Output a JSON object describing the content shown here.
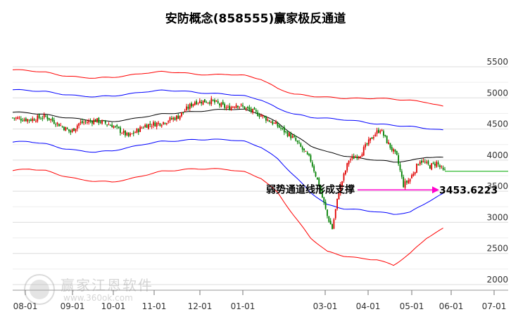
{
  "watermark": {
    "name": "赢家江恩软件",
    "url": "www.360ok.com"
  },
  "chart_data": {
    "type": "candlestick",
    "title": "安防概念(858555)赢家极反通道",
    "x_tick_labels": [
      "08-01",
      "09-01",
      "10-01",
      "11-01",
      "12-01",
      "01-01",
      "03-01",
      "04-01",
      "05-01",
      "06-01",
      "07-01"
    ],
    "y_tick_labels": [
      "5500",
      "5000",
      "4500",
      "4000",
      "3500",
      "3000",
      "2500",
      "2000"
    ],
    "ylim": [
      2000,
      5750
    ],
    "grid": true,
    "annotation": {
      "text": "弱势通道线形成支撑",
      "value_label": "3453.6223",
      "value": 3453.6223
    },
    "last_close": 3820,
    "colors": {
      "up": "#e00000",
      "down": "#008000",
      "outer_band": "#ff0000",
      "inner_band": "#0000ff",
      "mid_line": "#000000",
      "support_arrow": "#ff00cc",
      "annotation_text": "#000000"
    },
    "bands": {
      "outer_upper": [
        [
          0,
          5450
        ],
        [
          10,
          5440
        ],
        [
          20,
          5410
        ],
        [
          30,
          5360
        ],
        [
          40,
          5330
        ],
        [
          50,
          5320
        ],
        [
          60,
          5330
        ],
        [
          70,
          5360
        ],
        [
          80,
          5400
        ],
        [
          90,
          5420
        ],
        [
          100,
          5410
        ],
        [
          110,
          5380
        ],
        [
          120,
          5370
        ],
        [
          130,
          5380
        ],
        [
          140,
          5360
        ],
        [
          150,
          5300
        ],
        [
          160,
          5150
        ],
        [
          170,
          5060
        ],
        [
          180,
          5030
        ],
        [
          190,
          5010
        ],
        [
          200,
          4995
        ],
        [
          210,
          4990
        ],
        [
          220,
          4995
        ],
        [
          230,
          4980
        ],
        [
          240,
          4960
        ],
        [
          250,
          4930
        ],
        [
          260,
          4860
        ]
      ],
      "inner_upper": [
        [
          0,
          5130
        ],
        [
          10,
          5120
        ],
        [
          20,
          5100
        ],
        [
          30,
          5060
        ],
        [
          40,
          5030
        ],
        [
          50,
          5020
        ],
        [
          60,
          5030
        ],
        [
          70,
          5060
        ],
        [
          80,
          5100
        ],
        [
          90,
          5120
        ],
        [
          100,
          5115
        ],
        [
          110,
          5090
        ],
        [
          120,
          5070
        ],
        [
          130,
          5060
        ],
        [
          140,
          5030
        ],
        [
          150,
          4970
        ],
        [
          160,
          4830
        ],
        [
          170,
          4740
        ],
        [
          180,
          4690
        ],
        [
          190,
          4670
        ],
        [
          200,
          4650
        ],
        [
          210,
          4620
        ],
        [
          220,
          4580
        ],
        [
          230,
          4560
        ],
        [
          240,
          4540
        ],
        [
          250,
          4510
        ],
        [
          260,
          4480
        ]
      ],
      "middle": [
        [
          0,
          4770
        ],
        [
          10,
          4760
        ],
        [
          20,
          4730
        ],
        [
          30,
          4690
        ],
        [
          40,
          4660
        ],
        [
          50,
          4630
        ],
        [
          60,
          4620
        ],
        [
          70,
          4650
        ],
        [
          80,
          4700
        ],
        [
          90,
          4740
        ],
        [
          100,
          4760
        ],
        [
          110,
          4780
        ],
        [
          120,
          4800
        ],
        [
          130,
          4820
        ],
        [
          140,
          4810
        ],
        [
          150,
          4740
        ],
        [
          160,
          4600
        ],
        [
          170,
          4400
        ],
        [
          180,
          4230
        ],
        [
          190,
          4130
        ],
        [
          200,
          4070
        ],
        [
          210,
          4030
        ],
        [
          220,
          4000
        ],
        [
          230,
          3970
        ],
        [
          240,
          3990
        ],
        [
          250,
          4050
        ],
        [
          260,
          4040
        ]
      ],
      "inner_lower": [
        [
          0,
          4290
        ],
        [
          10,
          4300
        ],
        [
          20,
          4260
        ],
        [
          30,
          4190
        ],
        [
          40,
          4150
        ],
        [
          50,
          4130
        ],
        [
          60,
          4150
        ],
        [
          70,
          4200
        ],
        [
          80,
          4260
        ],
        [
          90,
          4300
        ],
        [
          100,
          4310
        ],
        [
          110,
          4330
        ],
        [
          120,
          4330
        ],
        [
          130,
          4330
        ],
        [
          140,
          4300
        ],
        [
          150,
          4210
        ],
        [
          160,
          4020
        ],
        [
          170,
          3750
        ],
        [
          180,
          3480
        ],
        [
          190,
          3280
        ],
        [
          200,
          3220
        ],
        [
          210,
          3200
        ],
        [
          220,
          3170
        ],
        [
          230,
          3130
        ],
        [
          240,
          3160
        ],
        [
          250,
          3320
        ],
        [
          260,
          3460
        ]
      ],
      "outer_lower": [
        [
          0,
          3830
        ],
        [
          10,
          3860
        ],
        [
          20,
          3830
        ],
        [
          30,
          3750
        ],
        [
          40,
          3690
        ],
        [
          50,
          3660
        ],
        [
          60,
          3650
        ],
        [
          70,
          3690
        ],
        [
          80,
          3760
        ],
        [
          90,
          3820
        ],
        [
          100,
          3840
        ],
        [
          110,
          3860
        ],
        [
          120,
          3860
        ],
        [
          130,
          3850
        ],
        [
          140,
          3810
        ],
        [
          150,
          3710
        ],
        [
          160,
          3480
        ],
        [
          170,
          3100
        ],
        [
          180,
          2750
        ],
        [
          190,
          2530
        ],
        [
          200,
          2460
        ],
        [
          210,
          2420
        ],
        [
          220,
          2400
        ],
        [
          230,
          2310
        ],
        [
          240,
          2500
        ],
        [
          250,
          2750
        ],
        [
          260,
          2900
        ]
      ]
    },
    "price_path": [
      [
        0,
        4680
      ],
      [
        10,
        4650
      ],
      [
        20,
        4700
      ],
      [
        30,
        4540
      ],
      [
        35,
        4450
      ],
      [
        40,
        4590
      ],
      [
        50,
        4640
      ],
      [
        60,
        4560
      ],
      [
        70,
        4380
      ],
      [
        80,
        4560
      ],
      [
        90,
        4600
      ],
      [
        100,
        4700
      ],
      [
        110,
        4940
      ],
      [
        120,
        4950
      ],
      [
        130,
        4830
      ],
      [
        135,
        4900
      ],
      [
        140,
        4840
      ],
      [
        150,
        4720
      ],
      [
        160,
        4550
      ],
      [
        170,
        4340
      ],
      [
        180,
        4000
      ],
      [
        185,
        3600
      ],
      [
        190,
        3100
      ],
      [
        193,
        2900
      ],
      [
        197,
        3500
      ],
      [
        203,
        4000
      ],
      [
        210,
        4100
      ],
      [
        218,
        4400
      ],
      [
        222,
        4500
      ],
      [
        226,
        4300
      ],
      [
        232,
        4050
      ],
      [
        236,
        3600
      ],
      [
        240,
        3700
      ],
      [
        246,
        4000
      ],
      [
        252,
        3900
      ],
      [
        256,
        3960
      ],
      [
        260,
        3820
      ]
    ]
  }
}
